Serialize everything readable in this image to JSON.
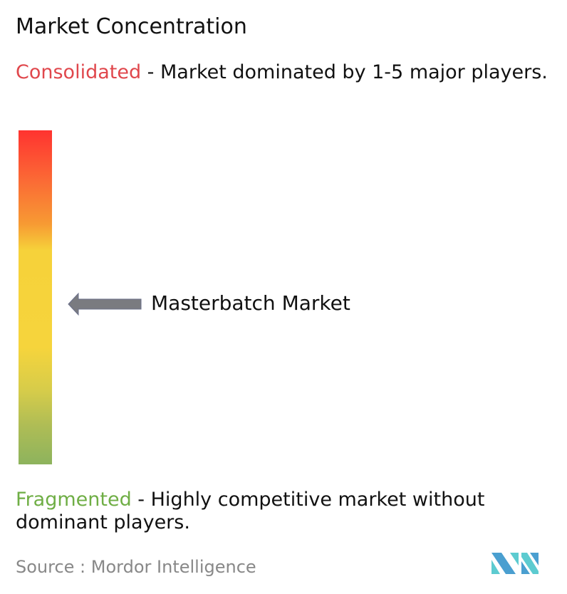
{
  "title": "Market Concentration",
  "consolidated": {
    "term": "Consolidated",
    "description": " - Market dominated by 1-5 major players.",
    "color": "#e0474c"
  },
  "fragmented": {
    "term": "Fragmented",
    "description": " - Highly competitive market without dominant players.",
    "color": "#6fae45"
  },
  "scale": {
    "top_color": "#ff3330",
    "middle_color": "#f6d43c",
    "bottom_color": "#8db35d"
  },
  "marker": {
    "label": "Masterbatch Market",
    "icon": "arrow-left-icon",
    "position_percent_from_top": 52
  },
  "source": "Source :  Mordor Intelligence",
  "logo": {
    "name": "Mordor Intelligence logo",
    "colors": [
      "#4a9fd0",
      "#5ccbd0"
    ]
  }
}
